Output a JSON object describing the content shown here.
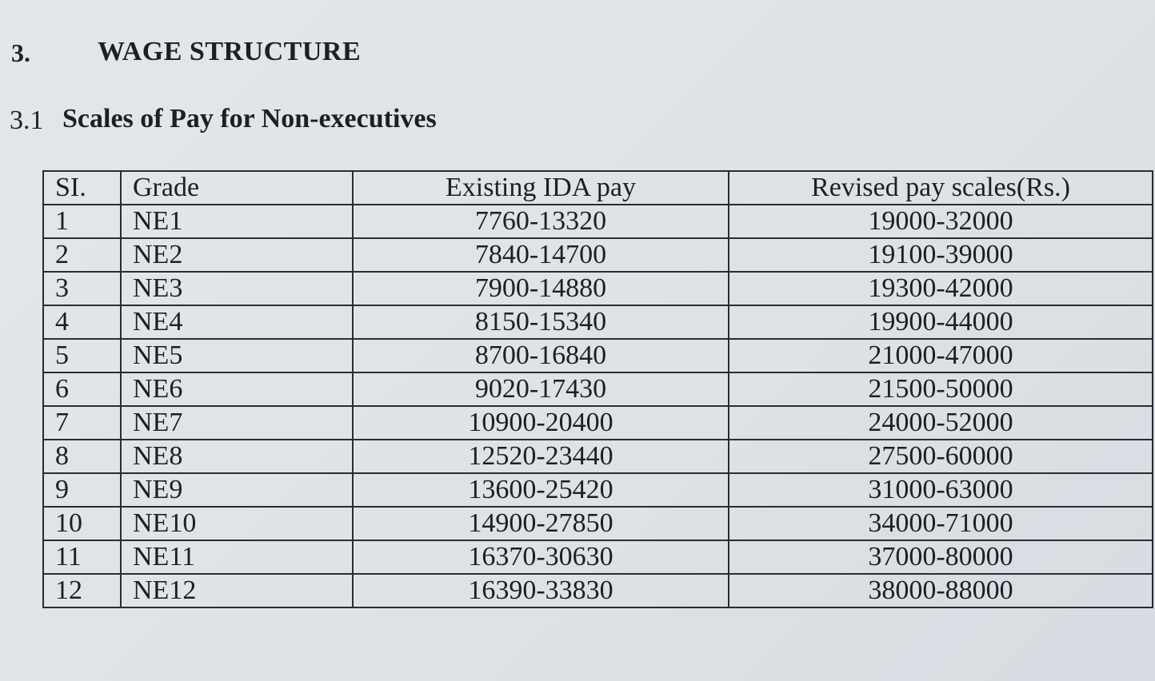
{
  "section": {
    "number": "3.",
    "title": "WAGE STRUCTURE"
  },
  "subsection": {
    "number": "3.1",
    "title": "Scales of Pay for Non-executives"
  },
  "table": {
    "headers": [
      "SI.",
      "Grade",
      "Existing IDA pay",
      "Revised pay scales(Rs.)"
    ],
    "rows": [
      [
        "1",
        "NE1",
        "7760-13320",
        "19000-32000"
      ],
      [
        "2",
        "NE2",
        "7840-14700",
        "19100-39000"
      ],
      [
        "3",
        "NE3",
        "7900-14880",
        "19300-42000"
      ],
      [
        "4",
        "NE4",
        "8150-15340",
        "19900-44000"
      ],
      [
        "5",
        "NE5",
        "8700-16840",
        "21000-47000"
      ],
      [
        "6",
        "NE6",
        "9020-17430",
        "21500-50000"
      ],
      [
        "7",
        "NE7",
        "10900-20400",
        "24000-52000"
      ],
      [
        "8",
        "NE8",
        "12520-23440",
        "27500-60000"
      ],
      [
        "9",
        "NE9",
        "13600-25420",
        "31000-63000"
      ],
      [
        "10",
        "NE10",
        "14900-27850",
        "34000-71000"
      ],
      [
        "11",
        "NE11",
        "16370-30630",
        "37000-80000"
      ],
      [
        "12",
        "NE12",
        "16390-33830",
        "38000-88000"
      ]
    ]
  }
}
